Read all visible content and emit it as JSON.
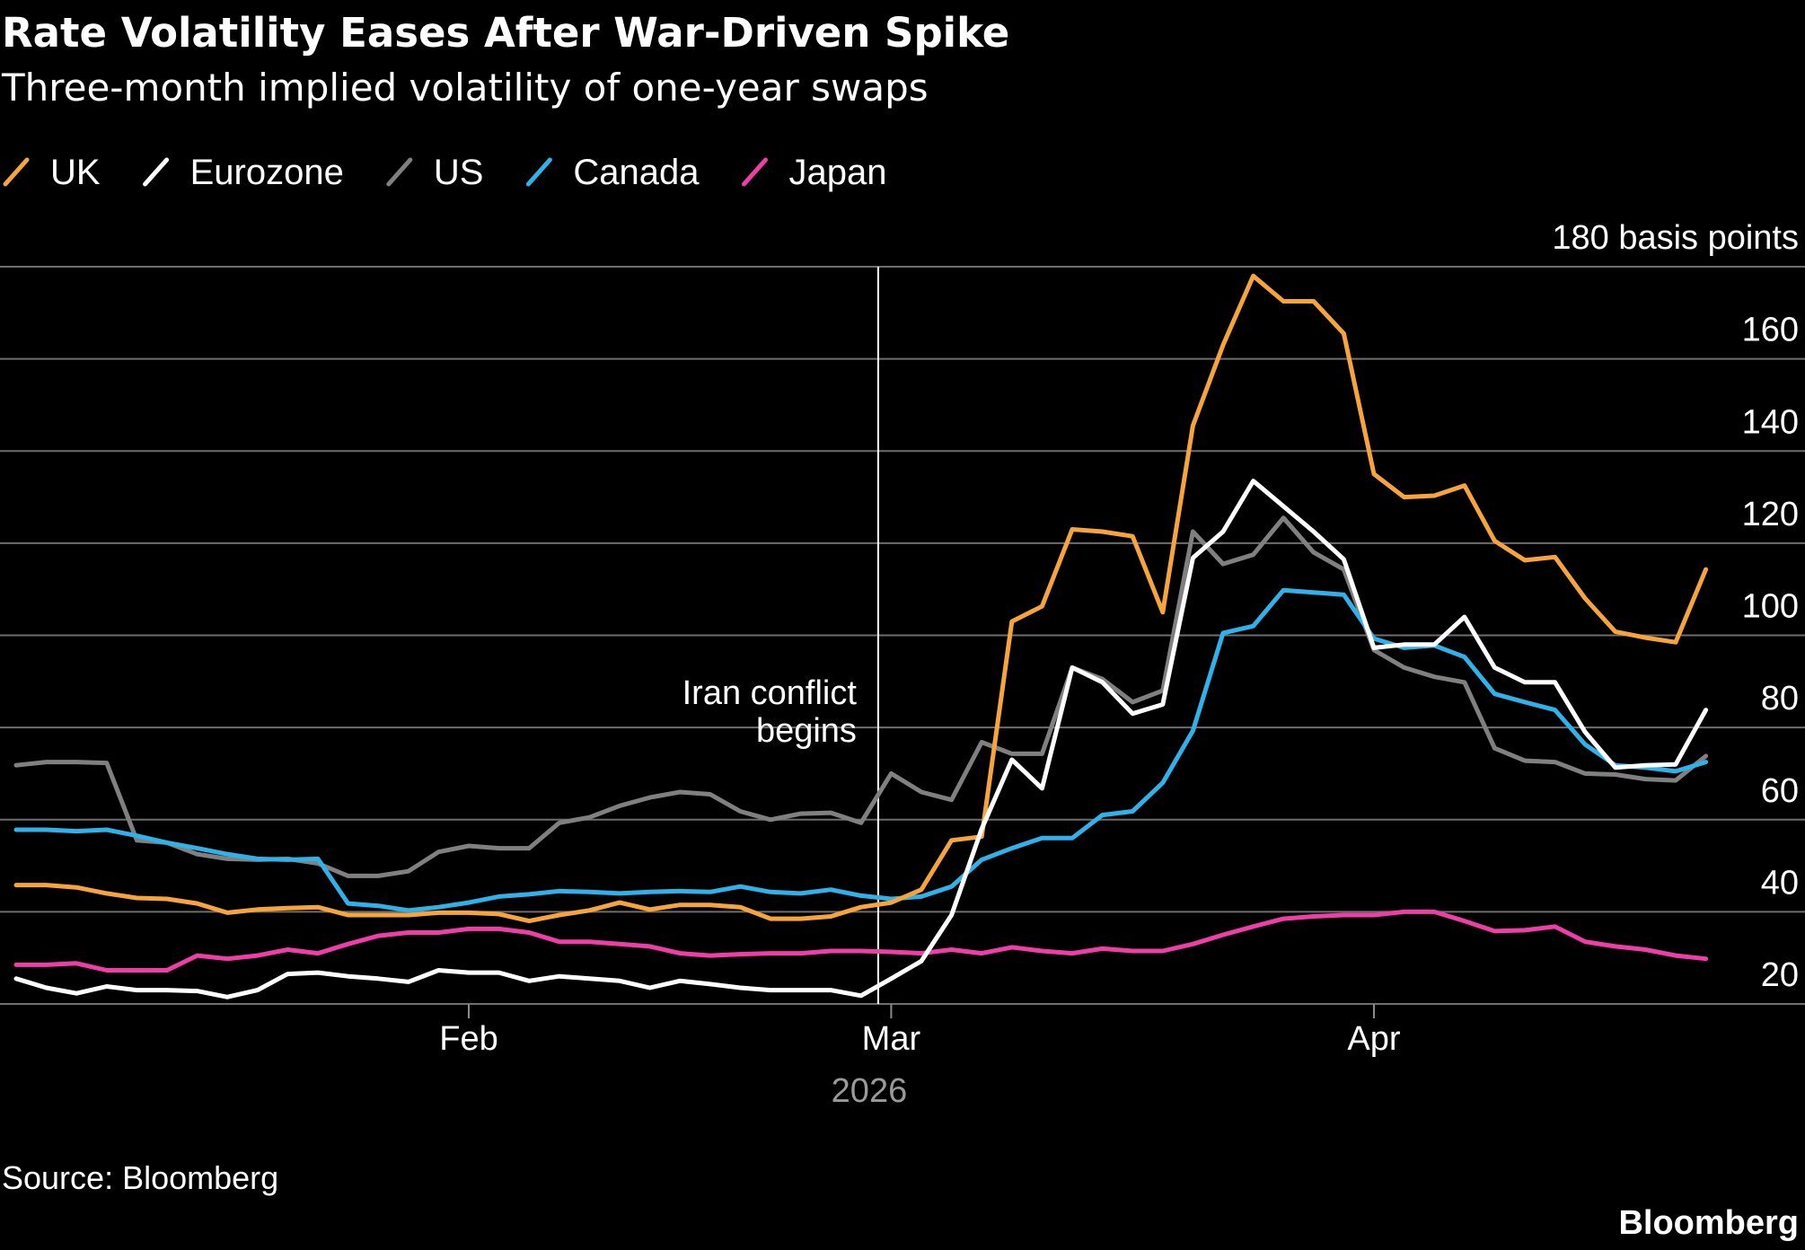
{
  "chart_data": {
    "type": "line",
    "title": "Rate Volatility Eases After War-Driven Spike",
    "subtitle": "Three-month implied volatility of one-year swaps",
    "categories": [
      null,
      null,
      null,
      null,
      null,
      null,
      null,
      null,
      null,
      null,
      null,
      null,
      null,
      null,
      null,
      "Feb",
      null,
      null,
      null,
      null,
      null,
      null,
      null,
      null,
      null,
      null,
      null,
      null,
      null,
      "Mar",
      null,
      null,
      null,
      null,
      null,
      null,
      null,
      null,
      null,
      null,
      null,
      null,
      null,
      null,
      null,
      "Apr",
      null,
      null,
      null,
      null,
      null,
      null,
      null,
      null,
      null,
      null,
      null
    ],
    "x_year_label": "2026",
    "series": [
      {
        "name": "UK",
        "color": "#f7a43b",
        "values": [
          45.8,
          45.8,
          45.3,
          44,
          43,
          42.8,
          41.8,
          39.8,
          40.5,
          40.8,
          41,
          39.3,
          39.3,
          39.3,
          39.8,
          39.8,
          39.5,
          38,
          39.3,
          40.3,
          42,
          40.5,
          41.5,
          41.5,
          41,
          38.5,
          38.5,
          39,
          41,
          42,
          44.8,
          55.5,
          56.3,
          103,
          106.3,
          123,
          122.5,
          121.5,
          105,
          145.5,
          163,
          178,
          172.5,
          172.5,
          165.5,
          135,
          130,
          130.3,
          132.5,
          120.5,
          116.3,
          117,
          108,
          100.8,
          99.5,
          98.5,
          114.3
        ]
      },
      {
        "name": "Eurozone",
        "color": "#ffffff",
        "values": [
          25.5,
          23.5,
          22.3,
          23.8,
          23,
          23,
          22.8,
          21.5,
          23,
          26.5,
          26.8,
          26,
          25.5,
          24.8,
          27.3,
          26.8,
          26.8,
          25,
          26,
          25.5,
          25,
          23.5,
          25,
          24.3,
          23.5,
          23,
          23,
          23,
          21.8,
          25.5,
          29.3,
          39.3,
          58,
          73,
          66.8,
          93,
          89.8,
          83,
          85,
          116.8,
          122.5,
          133.5,
          128,
          122.5,
          116.5,
          97.3,
          98,
          98,
          104,
          93,
          89.8,
          89.8,
          79,
          71.3,
          71.8,
          72,
          83.8
        ]
      },
      {
        "name": "US",
        "color": "#808080",
        "values": [
          71.8,
          72.5,
          72.5,
          72.3,
          55.5,
          55,
          52.5,
          51.5,
          51.3,
          51.5,
          50.5,
          47.8,
          47.8,
          48.8,
          53,
          54.3,
          53.8,
          53.8,
          59.3,
          60.5,
          63,
          64.8,
          66,
          65.5,
          61.8,
          60,
          61.3,
          61.5,
          59.3,
          70,
          66,
          64.3,
          76.8,
          74.3,
          74.3,
          93,
          90.5,
          85.5,
          88,
          122.5,
          115.5,
          117.5,
          125.5,
          118,
          114.3,
          96.8,
          93,
          91,
          89.8,
          75.5,
          72.8,
          72.5,
          70,
          69.8,
          68.8,
          68.5,
          73.8
        ]
      },
      {
        "name": "Canada",
        "color": "#2fb2ea",
        "values": [
          57.8,
          57.8,
          57.5,
          57.8,
          56.5,
          55,
          53.8,
          52.5,
          51.5,
          51.3,
          51.5,
          41.8,
          41.3,
          40.3,
          41,
          42,
          43.3,
          43.8,
          44.5,
          44.3,
          44,
          44.3,
          44.5,
          44.3,
          45.5,
          44.3,
          44,
          44.8,
          43.5,
          42.8,
          43.3,
          45.5,
          51.3,
          53.8,
          56,
          56,
          61,
          61.8,
          68,
          79.3,
          100.5,
          102,
          109.8,
          109.3,
          108.8,
          99.3,
          97.3,
          97.8,
          95.3,
          87.3,
          85.5,
          83.8,
          76.3,
          71.8,
          71.3,
          70.5,
          72.5
        ]
      },
      {
        "name": "Japan",
        "color": "#ef3ea8",
        "values": [
          28.5,
          28.5,
          28.8,
          27.3,
          27.3,
          27.3,
          30.5,
          29.8,
          30.5,
          31.8,
          31,
          33,
          34.8,
          35.5,
          35.5,
          36.3,
          36.3,
          35.5,
          33.5,
          33.5,
          33,
          32.5,
          31,
          30.5,
          30.8,
          31,
          31,
          31.5,
          31.5,
          31.3,
          31,
          31.8,
          31,
          32.3,
          31.5,
          31,
          32,
          31.5,
          31.5,
          33,
          35,
          36.8,
          38.5,
          39,
          39.3,
          39.3,
          40,
          40,
          38,
          35.8,
          36,
          36.8,
          33.5,
          32.5,
          31.8,
          30.5,
          29.8
        ]
      }
    ],
    "ylim": [
      20,
      180
    ],
    "yticks": [
      20,
      40,
      60,
      80,
      100,
      120,
      140,
      160,
      {
        "value": 180,
        "label": "180 basis points"
      }
    ],
    "grid": true,
    "annotation": {
      "lines": [
        "Iran conflict",
        "begins"
      ]
    },
    "source": "Source: Bloomberg",
    "brand": "Bloomberg"
  }
}
